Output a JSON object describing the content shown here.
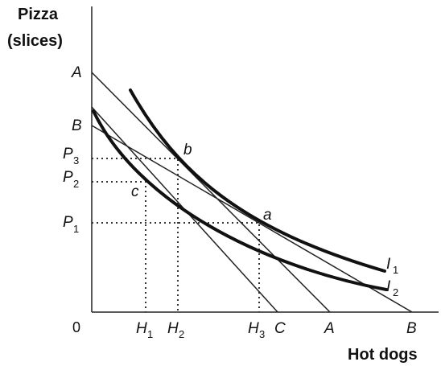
{
  "axes": {
    "y_label_line1": "Pizza",
    "y_label_line2": "(slices)",
    "x_label": "Hot dogs",
    "origin": "0"
  },
  "y_ticks": {
    "A": "A",
    "B": "B",
    "P3_main": "P",
    "P3_sub": "3",
    "P2_main": "P",
    "P2_sub": "2",
    "P1_main": "P",
    "P1_sub": "1"
  },
  "x_ticks": {
    "H1_main": "H",
    "H1_sub": "1",
    "H2_main": "H",
    "H2_sub": "2",
    "H3_main": "H",
    "H3_sub": "3",
    "C": "C",
    "A": "A",
    "B": "B"
  },
  "points": {
    "a": "a",
    "b": "b",
    "c": "c"
  },
  "curves": {
    "I1_main": "I",
    "I1_sub": "1",
    "I2_main": "I",
    "I2_sub": "2"
  }
}
